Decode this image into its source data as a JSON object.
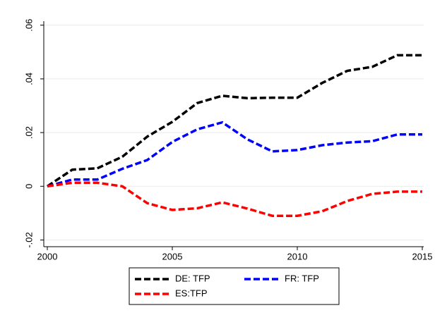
{
  "chart_data": {
    "type": "line",
    "x": [
      2000,
      2001,
      2002,
      2003,
      2004,
      2005,
      2006,
      2007,
      2008,
      2009,
      2010,
      2011,
      2012,
      2013,
      2014,
      2015
    ],
    "series": [
      {
        "name": "DE: TFP",
        "color": "#000000",
        "values": [
          0,
          0.0062,
          0.0067,
          0.011,
          0.0185,
          0.024,
          0.031,
          0.0337,
          0.0328,
          0.033,
          0.033,
          0.0385,
          0.043,
          0.0445,
          0.0488,
          0.0488
        ]
      },
      {
        "name": "FR: TFP",
        "color": "#0000ff",
        "values": [
          0,
          0.0025,
          0.0025,
          0.0065,
          0.0098,
          0.0165,
          0.0212,
          0.0238,
          0.0175,
          0.013,
          0.0135,
          0.0153,
          0.0163,
          0.0168,
          0.0193,
          0.0193
        ]
      },
      {
        "name": "ES:TFP",
        "color": "#ff0000",
        "values": [
          0,
          0.0013,
          0.0013,
          0,
          -0.0063,
          -0.0088,
          -0.0082,
          -0.006,
          -0.0083,
          -0.011,
          -0.011,
          -0.0093,
          -0.0055,
          -0.0028,
          -0.002,
          -0.002
        ]
      }
    ],
    "xlim": [
      2000,
      2015
    ],
    "xticks": [
      2000,
      2005,
      2010,
      2015
    ],
    "ylim": [
      -0.0225,
      0.0615
    ],
    "yticks": [
      {
        "value": -0.02,
        "label": "-.02"
      },
      0,
      {
        "value": 0.02,
        "label": ".02"
      },
      {
        "value": 0.04,
        "label": ".04"
      },
      {
        "value": 0.06,
        "label": ".06"
      }
    ],
    "grid": true,
    "legend": "bottom"
  }
}
